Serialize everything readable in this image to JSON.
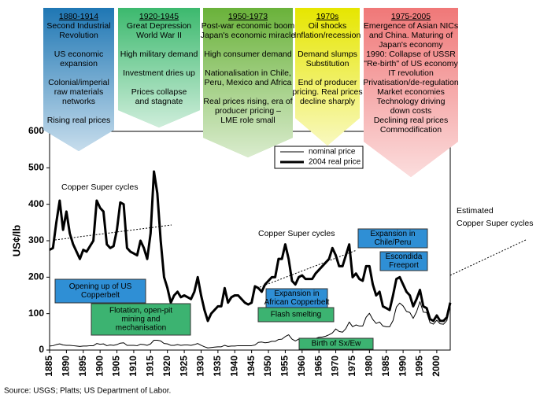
{
  "chart_data": {
    "type": "line",
    "y_label": "US¢/lb",
    "source": "Source:  USGS; Platts; US Department of Labor.",
    "xlim": [
      1885,
      2004
    ],
    "ylim": [
      0,
      600
    ],
    "xticks": [
      1885,
      1890,
      1895,
      1900,
      1905,
      1910,
      1915,
      1920,
      1925,
      1930,
      1935,
      1940,
      1945,
      1950,
      1955,
      1960,
      1965,
      1970,
      1975,
      1980,
      1985,
      1990,
      1995,
      2000
    ],
    "yticks": [
      0,
      100,
      200,
      300,
      400,
      500,
      600
    ],
    "x": [
      1885,
      1886,
      1887,
      1888,
      1889,
      1890,
      1891,
      1892,
      1893,
      1894,
      1895,
      1896,
      1897,
      1898,
      1899,
      1900,
      1901,
      1902,
      1903,
      1904,
      1905,
      1906,
      1907,
      1908,
      1909,
      1910,
      1911,
      1912,
      1913,
      1914,
      1915,
      1916,
      1917,
      1918,
      1919,
      1920,
      1921,
      1922,
      1923,
      1924,
      1925,
      1926,
      1927,
      1928,
      1929,
      1930,
      1931,
      1932,
      1933,
      1934,
      1935,
      1936,
      1937,
      1938,
      1939,
      1940,
      1941,
      1942,
      1943,
      1944,
      1945,
      1946,
      1947,
      1948,
      1949,
      1950,
      1951,
      1952,
      1953,
      1954,
      1955,
      1956,
      1957,
      1958,
      1959,
      1960,
      1961,
      1962,
      1963,
      1964,
      1965,
      1966,
      1967,
      1968,
      1969,
      1970,
      1971,
      1972,
      1973,
      1974,
      1975,
      1976,
      1977,
      1978,
      1979,
      1980,
      1981,
      1982,
      1983,
      1984,
      1985,
      1986,
      1987,
      1988,
      1989,
      1990,
      1991,
      1992,
      1993,
      1994,
      1995,
      1996,
      1997,
      1998,
      1999,
      2000,
      2001,
      2002,
      2003,
      2004
    ],
    "series": [
      {
        "name": "nominal price",
        "color": "#000000",
        "width": 1,
        "values": [
          11,
          12,
          15,
          17,
          14,
          13,
          13,
          12,
          11,
          10,
          11,
          11,
          12,
          12,
          18,
          16,
          17,
          12,
          14,
          13,
          15,
          19,
          20,
          13,
          13,
          13,
          12,
          16,
          15,
          13,
          17,
          27,
          27,
          25,
          18,
          17,
          13,
          13,
          15,
          13,
          14,
          14,
          13,
          15,
          18,
          13,
          9,
          6,
          7,
          8,
          9,
          9,
          13,
          10,
          11,
          11,
          12,
          12,
          12,
          12,
          12,
          14,
          21,
          22,
          20,
          21,
          24,
          24,
          29,
          30,
          37,
          42,
          30,
          25,
          30,
          31,
          29,
          31,
          31,
          32,
          35,
          36,
          38,
          42,
          47,
          58,
          51,
          49,
          59,
          77,
          64,
          69,
          66,
          66,
          90,
          101,
          84,
          73,
          77,
          66,
          64,
          64,
          81,
          118,
          129,
          121,
          106,
          103,
          87,
          105,
          133,
          104,
          103,
          75,
          71,
          82,
          72,
          71,
          81,
          130
        ]
      },
      {
        "name": "2004 real price",
        "color": "#000000",
        "width": 3,
        "values": [
          275,
          280,
          350,
          410,
          330,
          380,
          320,
          290,
          270,
          250,
          275,
          270,
          285,
          300,
          410,
          390,
          380,
          290,
          280,
          285,
          330,
          405,
          400,
          280,
          270,
          265,
          260,
          300,
          280,
          250,
          320,
          490,
          430,
          300,
          200,
          170,
          130,
          150,
          160,
          145,
          150,
          145,
          140,
          160,
          200,
          150,
          110,
          80,
          100,
          110,
          120,
          120,
          170,
          130,
          145,
          150,
          150,
          140,
          130,
          125,
          130,
          175,
          170,
          160,
          180,
          190,
          200,
          200,
          250,
          250,
          290,
          250,
          190,
          180,
          200,
          205,
          195,
          195,
          195,
          210,
          220,
          230,
          240,
          250,
          280,
          260,
          230,
          230,
          260,
          290,
          200,
          210,
          195,
          190,
          230,
          230,
          180,
          150,
          160,
          120,
          115,
          110,
          150,
          195,
          200,
          180,
          160,
          150,
          120,
          140,
          165,
          120,
          115,
          85,
          80,
          95,
          80,
          80,
          90,
          130
        ]
      }
    ],
    "periods": [
      {
        "title": "1880-1914",
        "color": "#1f77b4",
        "paras": [
          [
            "Second Industrial",
            "Revolution"
          ],
          [
            "US economic",
            "expansion"
          ],
          [
            "Colonial/imperial",
            "raw materials",
            "networks"
          ],
          [
            "Rising real prices"
          ]
        ]
      },
      {
        "title": "1920-1945",
        "color": "#3cb96e",
        "paras": [
          [
            "Great Depression",
            "World War II"
          ],
          [
            "High military demand"
          ],
          [
            "Investment dries up"
          ],
          [
            "Prices collapse",
            "and stagnate"
          ]
        ]
      },
      {
        "title": "1950-1973",
        "color": "#6ab23a",
        "paras": [
          [
            "Post-war economic boom",
            "Japan's economic miracle"
          ],
          [
            "High consumer demand"
          ],
          [
            "Nationalisation in Chile,",
            "Peru, Mexico and Africa"
          ],
          [
            "Real prices rising, era of",
            "producer pricing –",
            "LME role small"
          ]
        ]
      },
      {
        "title": "1970s",
        "color": "#e6e600",
        "paras": [
          [
            "Oil shocks",
            "Inflation/recession"
          ],
          [
            "Demand slumps",
            "Substitution"
          ],
          [
            "End of producer",
            "pricing. Real prices",
            "decline sharply"
          ]
        ]
      },
      {
        "title": "1975-2005",
        "color": "#f07878",
        "paras": [
          [
            "Emergence of Asian NICs",
            "and China.  Maturing of",
            "Japan's economy"
          ],
          [
            "1990: Collapse of USSR"
          ],
          [
            "\"Re-birth\" of US economy"
          ],
          [
            "IT revolution"
          ],
          [
            "Privatisation/de-regulation"
          ],
          [
            "Market economies"
          ],
          [
            "Technology driving",
            "down costs"
          ],
          [
            "Declining real prices"
          ],
          [
            "Commodification"
          ]
        ]
      }
    ],
    "blue_boxes": [
      [
        "Opening up of US",
        "Copperbelt"
      ],
      [
        "Expansion in",
        "African Copperbelt"
      ],
      [
        "Expansion in",
        "Chile/Peru"
      ],
      [
        "Escondida",
        "Freeport"
      ]
    ],
    "green_boxes": [
      [
        "Flotation, open-pit",
        "mining and",
        "mechanisation"
      ],
      [
        "Flash smelting"
      ],
      [
        "Birth of Sx/Ew"
      ]
    ],
    "notes": [
      "Copper Super cycles",
      "Copper Super cycles"
    ],
    "estimated": [
      "Estimated",
      "Copper Super cycles"
    ]
  }
}
